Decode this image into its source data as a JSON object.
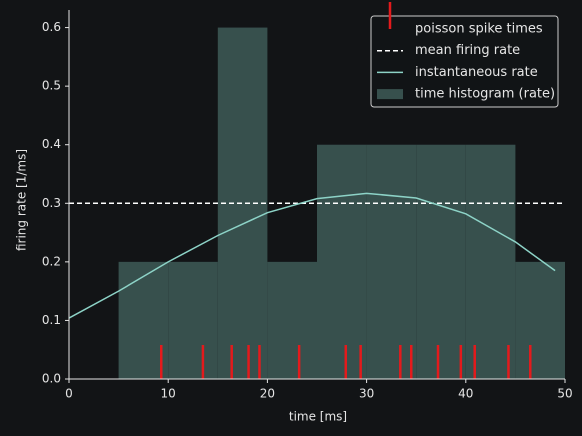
{
  "chart_data": {
    "type": "histogram",
    "xlabel": "time [ms]",
    "ylabel": "firing rate [1/ms]",
    "xlim": [
      0,
      50
    ],
    "xticks": [
      0,
      10,
      20,
      30,
      40,
      50
    ],
    "ylim": [
      0,
      0.63
    ],
    "yticks": [
      {
        "value": 0,
        "label": "0.0"
      },
      0.1,
      0.2,
      0.3,
      0.4,
      0.5,
      0.6
    ],
    "grid": false,
    "legend": "upper right",
    "spikes": {
      "name": "poisson spike times",
      "color": "#e41a1c",
      "x": [
        9.3,
        13.5,
        16.4,
        18.1,
        19.2,
        23.2,
        27.9,
        29.4,
        33.4,
        34.5,
        37.2,
        39.5,
        40.9,
        44.3,
        46.5
      ]
    },
    "mean": {
      "name": "mean firing rate",
      "color": "#ffffff",
      "value": 0.3
    },
    "line": {
      "name": "instantaneous rate",
      "color": "#8dd3c7",
      "x": [
        0,
        5,
        10,
        15,
        20,
        25,
        30,
        35,
        40,
        45,
        49
      ],
      "values": [
        0.104,
        0.15,
        0.2,
        0.245,
        0.284,
        0.308,
        0.317,
        0.309,
        0.282,
        0.234,
        0.185
      ]
    },
    "histogram": {
      "name": "time histogram (rate)",
      "color": "#37504d",
      "bins": [
        0,
        5,
        10,
        15,
        20,
        25,
        30,
        35,
        40,
        45,
        50
      ],
      "values": [
        0,
        0.2,
        0.2,
        0.6,
        0.2,
        0.4,
        0.4,
        0.4,
        0.4,
        0.2
      ]
    }
  }
}
